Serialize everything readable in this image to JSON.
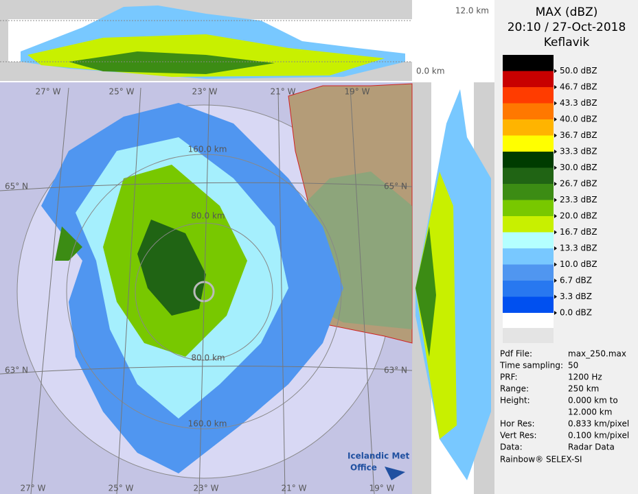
{
  "header": {
    "title": "MAX (dBZ)",
    "datetime": "20:10 / 27-Oct-2018",
    "site": "Keflavik"
  },
  "legend": [
    {
      "label": "50.0 dBZ",
      "color": "#000000"
    },
    {
      "label": "46.7 dBZ",
      "color": "#c80000"
    },
    {
      "label": "43.3 dBZ",
      "color": "#ff3c00"
    },
    {
      "label": "40.0 dBZ",
      "color": "#ff7800"
    },
    {
      "label": "36.7 dBZ",
      "color": "#ffb400"
    },
    {
      "label": "33.3 dBZ",
      "color": "#ffff00"
    },
    {
      "label": "30.0 dBZ",
      "color": "#003c00"
    },
    {
      "label": "26.7 dBZ",
      "color": "#206414"
    },
    {
      "label": "23.3 dBZ",
      "color": "#3c8c14"
    },
    {
      "label": "20.0 dBZ",
      "color": "#78c800"
    },
    {
      "label": "16.7 dBZ",
      "color": "#c8f000"
    },
    {
      "label": "13.3 dBZ",
      "color": "#b4ffff"
    },
    {
      "label": "10.0 dBZ",
      "color": "#78c8ff"
    },
    {
      "label": "6.7 dBZ",
      "color": "#5096f0"
    },
    {
      "label": "3.3 dBZ",
      "color": "#2878f0"
    },
    {
      "label": "0.0 dBZ",
      "color": "#0050f0"
    }
  ],
  "info": [
    {
      "label": "Pdf File:",
      "value": [
        "max_250.max"
      ]
    },
    {
      "label": "Time sampling:",
      "value": [
        "50"
      ]
    },
    {
      "label": "PRF:",
      "value": [
        "1200 Hz"
      ]
    },
    {
      "label": "Range:",
      "value": [
        "250 km"
      ]
    },
    {
      "label": "Height:",
      "value": [
        "0.000 km to",
        "12.000 km"
      ]
    },
    {
      "label": "Hor Res:",
      "value": [
        "0.833 km/pixel"
      ]
    },
    {
      "label": "Vert Res:",
      "value": [
        "0.100 km/pixel"
      ]
    },
    {
      "label": "Data:",
      "value": [
        "Radar Data"
      ]
    }
  ],
  "footer": "Rainbow® SELEX-SI",
  "map": {
    "lon_top": [
      "27° W",
      "25° W",
      "23° W",
      "21° W",
      "19° W"
    ],
    "lon_bottom": [
      "27° W",
      "25° W",
      "23° W",
      "21° W",
      "19° W"
    ],
    "lat": [
      "65° N",
      "65° N",
      "63° N",
      "63° N"
    ],
    "range": [
      "160.0 km",
      "80.0 km",
      "80.0 km",
      "160.0 km"
    ],
    "logo": [
      "Icelandic Met",
      "Office"
    ]
  },
  "cross_section": {
    "top_height": "12.0 km",
    "bottom_height": "0.0 km"
  }
}
